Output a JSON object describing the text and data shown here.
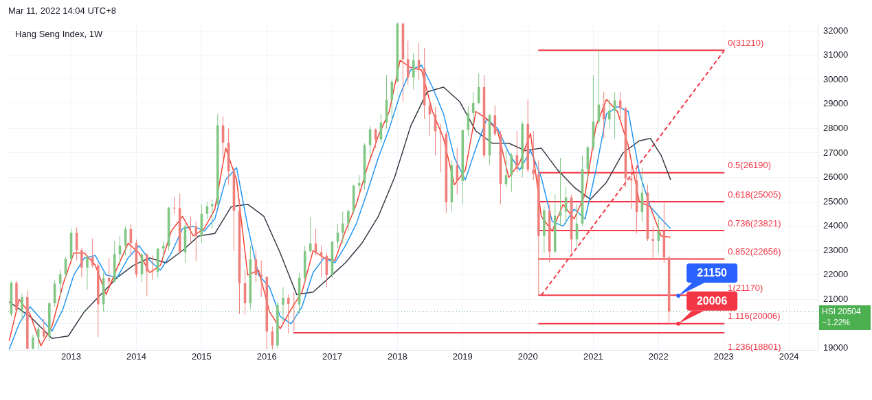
{
  "chart_data": {
    "type": "candlestick",
    "title": "Hang Seng Index, 1W",
    "annotations": [
      "Mar 11, 2022 14:04 UTC+8",
      {
        "text": "21150",
        "x": "2022-04-22",
        "y": 21150
      },
      {
        "text": "20006",
        "x": "2022-04-22",
        "y": 20006
      },
      "1.236(18801)"
    ],
    "x": [
      "2012-02",
      "2012-03",
      "2012-04",
      "2012-05",
      "2012-06",
      "2012-07",
      "2012-08",
      "2012-09",
      "2012-10",
      "2012-11",
      "2012-12",
      "2013-01",
      "2013-02",
      "2013-03",
      "2013-04",
      "2013-05",
      "2013-06",
      "2013-07",
      "2013-08",
      "2013-09",
      "2013-10",
      "2013-11",
      "2013-12",
      "2014-01",
      "2014-02",
      "2014-03",
      "2014-04",
      "2014-05",
      "2014-06",
      "2014-07",
      "2014-08",
      "2014-09",
      "2014-10",
      "2014-11",
      "2014-12",
      "2015-01",
      "2015-02",
      "2015-03",
      "2015-04",
      "2015-05",
      "2015-06",
      "2015-07",
      "2015-08",
      "2015-09",
      "2015-10",
      "2015-11",
      "2015-12",
      "2016-01",
      "2016-02",
      "2016-03",
      "2016-04",
      "2016-05",
      "2016-06",
      "2016-07",
      "2016-08",
      "2016-09",
      "2016-10",
      "2016-11",
      "2016-12",
      "2017-01",
      "2017-02",
      "2017-03",
      "2017-04",
      "2017-05",
      "2017-06",
      "2017-07",
      "2017-08",
      "2017-09",
      "2017-10",
      "2017-11",
      "2017-12",
      "2018-01",
      "2018-02",
      "2018-03",
      "2018-04",
      "2018-05",
      "2018-06",
      "2018-07",
      "2018-08",
      "2018-09",
      "2018-10",
      "2018-11",
      "2018-12",
      "2019-01",
      "2019-02",
      "2019-03",
      "2019-04",
      "2019-05",
      "2019-06",
      "2019-07",
      "2019-08",
      "2019-09",
      "2019-10",
      "2019-11",
      "2019-12",
      "2020-01",
      "2020-02",
      "2020-03",
      "2020-04",
      "2020-05",
      "2020-06",
      "2020-07",
      "2020-08",
      "2020-09",
      "2020-10",
      "2020-11",
      "2020-12",
      "2021-01",
      "2021-02",
      "2021-03",
      "2021-04",
      "2021-05",
      "2021-06",
      "2021-07",
      "2021-08",
      "2021-09",
      "2021-10",
      "2021-11",
      "2021-12",
      "2022-01",
      "2022-02",
      "2022-03"
    ],
    "ohlc": [
      [
        20390,
        21760,
        20300,
        21680
      ],
      [
        21680,
        21770,
        20550,
        20556
      ],
      [
        20556,
        21240,
        20150,
        21094
      ],
      [
        21094,
        21370,
        18950,
        18980
      ],
      [
        18980,
        19560,
        18950,
        19441
      ],
      [
        19441,
        19900,
        18950,
        19796
      ],
      [
        19796,
        20200,
        19400,
        19482
      ],
      [
        19482,
        20900,
        19300,
        20840
      ],
      [
        20840,
        21800,
        20700,
        21642
      ],
      [
        21642,
        22200,
        21100,
        22030
      ],
      [
        22030,
        22720,
        21900,
        22657
      ],
      [
        22657,
        23900,
        22600,
        23730
      ],
      [
        23730,
        23950,
        22600,
        23020
      ],
      [
        23020,
        23100,
        21900,
        22300
      ],
      [
        22300,
        22800,
        21400,
        22737
      ],
      [
        22737,
        23500,
        22300,
        22392
      ],
      [
        22392,
        22500,
        19460,
        20803
      ],
      [
        20803,
        22100,
        20500,
        21883
      ],
      [
        21883,
        22700,
        21500,
        21731
      ],
      [
        21731,
        23400,
        21700,
        22859
      ],
      [
        22859,
        23600,
        22400,
        23206
      ],
      [
        23206,
        24000,
        22800,
        23881
      ],
      [
        23881,
        24100,
        22800,
        23306
      ],
      [
        23306,
        23450,
        21900,
        22035
      ],
      [
        22035,
        22900,
        21700,
        22837
      ],
      [
        22837,
        22900,
        21140,
        22151
      ],
      [
        22151,
        22800,
        21800,
        22134
      ],
      [
        22134,
        23100,
        21900,
        23082
      ],
      [
        23082,
        23400,
        22700,
        23190
      ],
      [
        23190,
        24800,
        23000,
        24757
      ],
      [
        24757,
        25200,
        24500,
        24742
      ],
      [
        24742,
        25330,
        22900,
        22933
      ],
      [
        22933,
        24100,
        22500,
        23998
      ],
      [
        23998,
        24400,
        23300,
        23987
      ],
      [
        23987,
        24200,
        22580,
        23605
      ],
      [
        23605,
        24900,
        23300,
        24507
      ],
      [
        24507,
        25000,
        24300,
        24823
      ],
      [
        24823,
        25100,
        23900,
        24901
      ],
      [
        24901,
        28590,
        24800,
        28133
      ],
      [
        28133,
        28500,
        26800,
        27424
      ],
      [
        27424,
        28000,
        25700,
        26250
      ],
      [
        26250,
        26400,
        23000,
        24636
      ],
      [
        24636,
        25100,
        20400,
        21671
      ],
      [
        21671,
        22200,
        20370,
        20846
      ],
      [
        20846,
        23200,
        20600,
        22640
      ],
      [
        22640,
        23000,
        21700,
        21996
      ],
      [
        21996,
        22600,
        21100,
        21914
      ],
      [
        21914,
        21950,
        18950,
        19683
      ],
      [
        19683,
        19900,
        18950,
        19112
      ],
      [
        19112,
        20900,
        19000,
        20777
      ],
      [
        20777,
        21500,
        20100,
        21067
      ],
      [
        21067,
        21200,
        19600,
        20815
      ],
      [
        20815,
        21300,
        19700,
        20794
      ],
      [
        20794,
        22100,
        20400,
        21891
      ],
      [
        21891,
        23200,
        21700,
        22977
      ],
      [
        22977,
        24360,
        22900,
        23297
      ],
      [
        23297,
        23900,
        22800,
        22935
      ],
      [
        22935,
        23200,
        21900,
        22790
      ],
      [
        22790,
        22900,
        21500,
        22001
      ],
      [
        22001,
        23400,
        21900,
        23361
      ],
      [
        23361,
        24100,
        23100,
        23741
      ],
      [
        23741,
        24600,
        23300,
        24112
      ],
      [
        24112,
        24700,
        23800,
        24615
      ],
      [
        24615,
        25700,
        24500,
        25661
      ],
      [
        25661,
        26100,
        25400,
        25765
      ],
      [
        25765,
        27400,
        25500,
        27324
      ],
      [
        27324,
        28100,
        26800,
        27970
      ],
      [
        27970,
        28000,
        27200,
        27554
      ],
      [
        27554,
        28600,
        27400,
        28246
      ],
      [
        28246,
        30200,
        28000,
        29177
      ],
      [
        29177,
        30000,
        28300,
        29919
      ],
      [
        29919,
        32350,
        29900,
        32300
      ],
      [
        32300,
        32350,
        29100,
        30845
      ],
      [
        30845,
        31600,
        29800,
        30093
      ],
      [
        30093,
        31100,
        29600,
        30808
      ],
      [
        30808,
        31500,
        30000,
        30469
      ],
      [
        30469,
        31300,
        28400,
        28955
      ],
      [
        28955,
        29000,
        27700,
        28583
      ],
      [
        28583,
        28900,
        26900,
        27889
      ],
      [
        27889,
        28200,
        26200,
        27789
      ],
      [
        27789,
        27900,
        24540,
        24980
      ],
      [
        24980,
        26700,
        24600,
        26507
      ],
      [
        26507,
        27200,
        25300,
        25846
      ],
      [
        25846,
        27950,
        24900,
        27942
      ],
      [
        27942,
        28900,
        27700,
        28633
      ],
      [
        28633,
        29500,
        28200,
        29051
      ],
      [
        29051,
        30260,
        29000,
        29699
      ],
      [
        29699,
        30200,
        26800,
        26901
      ],
      [
        26901,
        28600,
        26500,
        28543
      ],
      [
        28543,
        28950,
        27700,
        27778
      ],
      [
        27778,
        27900,
        24900,
        25725
      ],
      [
        25725,
        27100,
        25600,
        26092
      ],
      [
        26092,
        27000,
        25400,
        26907
      ],
      [
        26907,
        27900,
        26200,
        26346
      ],
      [
        26346,
        28300,
        26000,
        28190
      ],
      [
        28190,
        29180,
        26200,
        26313
      ],
      [
        26313,
        27900,
        25900,
        26130
      ],
      [
        26130,
        26700,
        21170,
        23603
      ],
      [
        23603,
        24800,
        22900,
        24644
      ],
      [
        24644,
        24900,
        22520,
        22961
      ],
      [
        22961,
        25300,
        22900,
        24427
      ],
      [
        24427,
        26800,
        24000,
        24595
      ],
      [
        24595,
        25600,
        24100,
        25177
      ],
      [
        25177,
        25300,
        22900,
        23459
      ],
      [
        23459,
        24900,
        23100,
        24107
      ],
      [
        24107,
        26900,
        24000,
        26341
      ],
      [
        26341,
        27300,
        25900,
        27231
      ],
      [
        27231,
        30200,
        27100,
        28284
      ],
      [
        28284,
        31210,
        28200,
        28980
      ],
      [
        28980,
        29500,
        27600,
        28378
      ],
      [
        28378,
        29200,
        28000,
        28725
      ],
      [
        28725,
        29500,
        27600,
        29152
      ],
      [
        29152,
        29500,
        28400,
        28828
      ],
      [
        28828,
        28900,
        25600,
        25961
      ],
      [
        25961,
        26500,
        24700,
        25879
      ],
      [
        25879,
        26500,
        23700,
        24576
      ],
      [
        24576,
        26400,
        24200,
        25377
      ],
      [
        25377,
        25700,
        23400,
        23475
      ],
      [
        23475,
        24000,
        22660,
        23398
      ],
      [
        23398,
        24400,
        22900,
        23802
      ],
      [
        23802,
        25000,
        22500,
        22713
      ],
      [
        22713,
        22800,
        20006,
        20504
      ]
    ],
    "series": [
      {
        "type": "line",
        "color": "#f44336",
        "x": [
          "2012-01-20",
          "2012-03-16",
          "2012-05-16",
          "2012-07-16",
          "2012-09-16",
          "2012-11-16",
          "2013-01-16",
          "2013-03-16",
          "2013-05-16",
          "2013-07-16",
          "2013-09-16",
          "2013-11-16",
          "2014-01-16",
          "2014-03-16",
          "2014-05-16",
          "2014-07-16",
          "2014-09-16",
          "2014-11-16",
          "2015-01-16",
          "2015-03-16",
          "2015-05-16",
          "2015-07-16",
          "2015-09-16",
          "2015-11-16",
          "2016-01-16",
          "2016-03-16",
          "2016-05-16",
          "2016-07-16",
          "2016-09-16",
          "2016-11-16",
          "2017-01-16",
          "2017-03-16",
          "2017-05-16",
          "2017-07-16",
          "2017-09-16",
          "2017-11-16",
          "2018-01-16",
          "2018-03-16",
          "2018-05-16",
          "2018-07-16",
          "2018-09-16",
          "2018-11-16",
          "2019-01-16",
          "2019-03-16",
          "2019-05-16",
          "2019-07-16",
          "2019-09-16",
          "2019-11-16",
          "2020-01-16",
          "2020-03-16",
          "2020-05-16",
          "2020-07-16",
          "2020-09-16",
          "2020-11-16",
          "2021-01-16",
          "2021-03-16",
          "2021-05-16",
          "2021-07-16",
          "2021-09-16",
          "2021-11-16",
          "2022-01-16",
          "2022-03-10"
        ],
        "values": [
          19300,
          21000,
          20400,
          19100,
          19900,
          21600,
          22900,
          22900,
          22400,
          21200,
          22300,
          23300,
          22900,
          22100,
          22400,
          23800,
          24400,
          23600,
          23900,
          24700,
          27200,
          25900,
          22000,
          22200,
          20500,
          19800,
          20600,
          21300,
          23000,
          22700,
          22600,
          23800,
          24900,
          26400,
          27700,
          28700,
          30800,
          30500,
          30400,
          28700,
          27600,
          25700,
          26300,
          28700,
          28400,
          27900,
          26000,
          26600,
          27800,
          24400,
          23800,
          24900,
          24300,
          25300,
          28100,
          29200,
          28700,
          27300,
          25000,
          24800,
          23600,
          23550
        ]
      },
      {
        "type": "line",
        "color": "#2196f3",
        "x": [
          "2012-01-20",
          "2012-03-16",
          "2012-05-16",
          "2012-07-16",
          "2012-09-16",
          "2012-11-16",
          "2013-01-16",
          "2013-03-16",
          "2013-05-16",
          "2013-07-16",
          "2013-09-16",
          "2013-11-16",
          "2014-01-16",
          "2014-03-16",
          "2014-05-16",
          "2014-07-16",
          "2014-09-16",
          "2014-11-16",
          "2015-01-16",
          "2015-03-16",
          "2015-05-16",
          "2015-07-16",
          "2015-09-16",
          "2015-11-16",
          "2016-01-16",
          "2016-03-16",
          "2016-05-16",
          "2016-07-16",
          "2016-09-16",
          "2016-11-16",
          "2017-01-16",
          "2017-03-16",
          "2017-05-16",
          "2017-07-16",
          "2017-09-16",
          "2017-11-16",
          "2018-01-16",
          "2018-03-16",
          "2018-05-16",
          "2018-07-16",
          "2018-09-16",
          "2018-11-16",
          "2019-01-16",
          "2019-03-16",
          "2019-05-16",
          "2019-07-16",
          "2019-09-16",
          "2019-11-16",
          "2020-01-16",
          "2020-03-16",
          "2020-05-16",
          "2020-07-16",
          "2020-09-16",
          "2020-11-16",
          "2021-01-16",
          "2021-03-16",
          "2021-05-16",
          "2021-07-16",
          "2021-09-16",
          "2021-11-16",
          "2022-01-16",
          "2022-03-10"
        ],
        "values": [
          18950,
          20000,
          20700,
          20200,
          19700,
          20600,
          22000,
          22700,
          22800,
          22000,
          21900,
          22700,
          23200,
          22600,
          22200,
          22900,
          23900,
          24000,
          23800,
          24300,
          25900,
          26400,
          24000,
          22000,
          21500,
          20300,
          20000,
          20700,
          22100,
          22700,
          22500,
          23200,
          24100,
          25400,
          26800,
          28000,
          29400,
          30400,
          30600,
          29700,
          28600,
          26800,
          25900,
          27200,
          28400,
          28000,
          27000,
          26300,
          27100,
          26000,
          24200,
          24000,
          24700,
          24300,
          26300,
          28600,
          28900,
          28700,
          26200,
          24800,
          24300,
          23900
        ]
      },
      {
        "type": "line",
        "color": "#363a45",
        "x": [
          "2012-01-20",
          "2012-05-16",
          "2012-09-16",
          "2012-12-16",
          "2013-03-16",
          "2013-06-16",
          "2013-09-16",
          "2013-12-16",
          "2014-03-16",
          "2014-06-16",
          "2014-09-16",
          "2014-12-16",
          "2015-03-16",
          "2015-06-16",
          "2015-09-16",
          "2015-12-16",
          "2016-03-16",
          "2016-06-16",
          "2016-09-16",
          "2016-12-16",
          "2017-03-16",
          "2017-06-16",
          "2017-09-16",
          "2017-12-16",
          "2018-03-16",
          "2018-06-16",
          "2018-09-16",
          "2018-12-16",
          "2019-03-16",
          "2019-06-16",
          "2019-09-16",
          "2019-12-16",
          "2020-03-16",
          "2020-06-16",
          "2020-09-16",
          "2020-12-16",
          "2021-03-16",
          "2021-06-16",
          "2021-09-16",
          "2021-11-16",
          "2022-01-16",
          "2022-03-10"
        ],
        "values": [
          20900,
          20300,
          19400,
          19500,
          20500,
          21200,
          21900,
          22400,
          22700,
          22500,
          23000,
          23600,
          23700,
          24800,
          24900,
          24400,
          22900,
          21200,
          21300,
          21900,
          22500,
          23300,
          24400,
          26000,
          28100,
          29500,
          29700,
          29100,
          27900,
          27400,
          27400,
          27100,
          27200,
          26300,
          25600,
          25100,
          25800,
          27000,
          27500,
          27600,
          26900,
          25900
        ]
      },
      {
        "type": "line",
        "color": "#f23645",
        "line_style": "dashed",
        "x": [
          "2020-03-16",
          "2023-01-05"
        ],
        "values": [
          21170,
          31210
        ]
      },
      {
        "type": "line",
        "color": "#f23645",
        "x": [
          "2016-05-28",
          "2023-01-05"
        ],
        "values": [
          19630,
          19630
        ]
      },
      {
        "type": "line",
        "name": "0(31210)",
        "color": "#f23645",
        "x": [
          "2020-02-28",
          "2023-01-05"
        ],
        "values": [
          31210,
          31210
        ]
      },
      {
        "type": "line",
        "name": "0.5(26190)",
        "color": "#f23645",
        "x": [
          "2020-02-28",
          "2023-01-05"
        ],
        "values": [
          26190,
          26190
        ]
      },
      {
        "type": "line",
        "name": "0.618(25005)",
        "color": "#f23645",
        "x": [
          "2020-02-28",
          "2023-01-05"
        ],
        "values": [
          25005,
          25005
        ]
      },
      {
        "type": "line",
        "name": "0.736(23821)",
        "color": "#f23645",
        "x": [
          "2020-02-28",
          "2023-01-05"
        ],
        "values": [
          23821,
          23821
        ]
      },
      {
        "type": "line",
        "name": "0.852(22656)",
        "color": "#f23645",
        "x": [
          "2020-02-28",
          "2023-01-05"
        ],
        "values": [
          22656,
          22656
        ]
      },
      {
        "type": "line",
        "name": "1(21170)",
        "color": "#f23645",
        "x": [
          "2020-02-28",
          "2023-01-05"
        ],
        "values": [
          21170,
          21170
        ]
      },
      {
        "type": "line",
        "name": "1.116(20006)",
        "color": "#f23645",
        "x": [
          "2020-02-28",
          "2023-01-05"
        ],
        "values": [
          20006,
          20006
        ]
      }
    ],
    "ref_lines": [
      {
        "axis": "y",
        "value": 20504,
        "label": "HSI 20504 −1.22%",
        "color": "#4caf50",
        "line_style": "dotted"
      }
    ],
    "xlim": [
      "2012-01-15",
      "2024-06-10"
    ],
    "xticks": [
      "2013",
      "2014",
      "2015",
      "2016",
      "2017",
      "2018",
      "2019",
      "2020",
      "2021",
      "2022",
      "2023",
      "2024"
    ],
    "ylim": [
      18930,
      32370
    ],
    "yticks": [
      19000,
      {
        "value": 20000,
        "label": null
      },
      21000,
      22000,
      23000,
      24000,
      25000,
      26000,
      27000,
      28000,
      29000,
      30000,
      31000,
      32000
    ],
    "grid": true,
    "legend": false
  }
}
